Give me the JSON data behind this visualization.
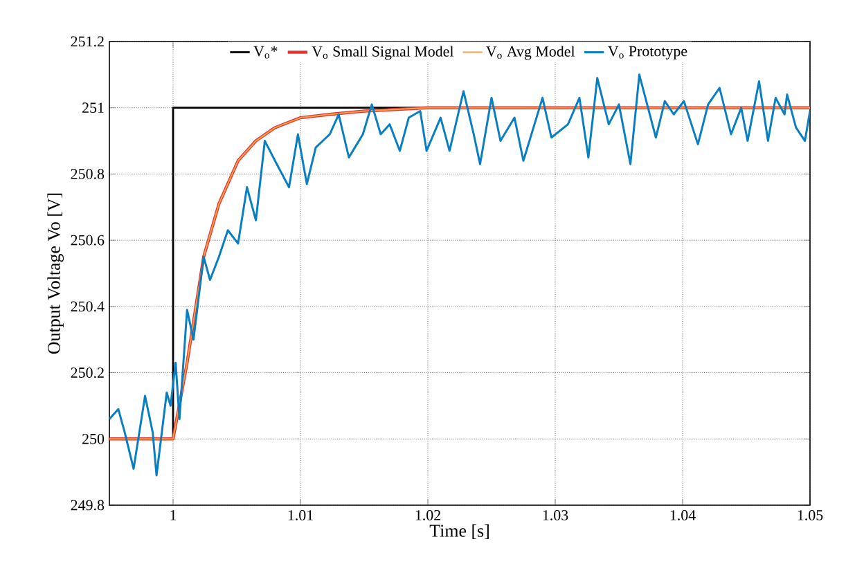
{
  "chart_data": {
    "type": "line",
    "xlabel": "Time [s]",
    "ylabel": "Output Voltage Vo [V]",
    "xlim": [
      0.995,
      1.05
    ],
    "ylim": [
      249.8,
      251.2
    ],
    "xticks": [
      1,
      1.01,
      1.02,
      1.03,
      1.04,
      1.05
    ],
    "yticks": [
      249.8,
      250,
      250.2,
      250.4,
      250.6,
      250.8,
      251,
      251.2
    ],
    "grid": true,
    "legend": "top",
    "series": [
      {
        "name": "V$_{o}$*",
        "color": "#000000",
        "x": [
          0.995,
          1.0,
          1.0,
          1.05
        ],
        "values": [
          250,
          250,
          251,
          251
        ]
      },
      {
        "name": "V$_{o}$ Small Signal Model",
        "color": "#e0312f",
        "x": [
          0.995,
          1.0,
          1.0011,
          1.0024,
          1.0036,
          1.0051,
          1.0065,
          1.008,
          1.01,
          1.0123,
          1.015,
          1.02,
          1.05
        ],
        "values": [
          250,
          250,
          250.23,
          250.55,
          250.71,
          250.84,
          250.9,
          250.94,
          250.97,
          250.98,
          250.99,
          251,
          251
        ]
      },
      {
        "name": "V$_{o}$ Avg Model",
        "color": "#f5a04a",
        "x": [
          0.995,
          1.0,
          1.0011,
          1.0024,
          1.0036,
          1.0051,
          1.0065,
          1.008,
          1.01,
          1.0123,
          1.015,
          1.02,
          1.05
        ],
        "values": [
          250,
          250,
          250.23,
          250.55,
          250.71,
          250.84,
          250.9,
          250.94,
          250.97,
          250.98,
          250.99,
          251,
          251
        ]
      },
      {
        "name": "V$_{o}$ Prototype",
        "color": "#0a7ec2",
        "x": [
          0.995,
          0.9957,
          0.9962,
          0.9969,
          0.9978,
          0.9984,
          0.9987,
          0.9995,
          0.9998,
          1.0002,
          1.0005,
          1.0011,
          1.0016,
          1.0024,
          1.0029,
          1.0036,
          1.0043,
          1.0051,
          1.0058,
          1.0065,
          1.0072,
          1.008,
          1.0091,
          1.0098,
          1.0105,
          1.0112,
          1.0123,
          1.013,
          1.0138,
          1.0149,
          1.0156,
          1.0163,
          1.017,
          1.0178,
          1.0185,
          1.0194,
          1.0199,
          1.021,
          1.0217,
          1.0228,
          1.0236,
          1.0241,
          1.025,
          1.0257,
          1.0268,
          1.0275,
          1.029,
          1.0297,
          1.031,
          1.0319,
          1.0326,
          1.0333,
          1.0342,
          1.035,
          1.0359,
          1.0366,
          1.0379,
          1.0386,
          1.0393,
          1.0401,
          1.0412,
          1.042,
          1.0429,
          1.0438,
          1.0446,
          1.0451,
          1.046,
          1.0467,
          1.0473,
          1.048,
          1.0482,
          1.0489,
          1.0496,
          1.05
        ],
        "values": [
          250.06,
          250.09,
          250.02,
          249.91,
          250.13,
          250.02,
          249.89,
          250.14,
          250.1,
          250.23,
          250.06,
          250.39,
          250.3,
          250.55,
          250.48,
          250.55,
          250.63,
          250.59,
          250.76,
          250.66,
          250.9,
          250.84,
          250.76,
          250.92,
          250.77,
          250.88,
          250.92,
          250.98,
          250.85,
          250.92,
          251.01,
          250.92,
          250.95,
          250.87,
          250.97,
          250.99,
          250.87,
          250.97,
          250.87,
          251.05,
          250.92,
          250.83,
          251.03,
          250.9,
          250.97,
          250.84,
          251.03,
          250.91,
          250.95,
          251.03,
          250.85,
          251.09,
          250.95,
          251.01,
          250.83,
          251.1,
          250.91,
          251.02,
          250.98,
          251.02,
          250.89,
          251.01,
          251.06,
          250.92,
          251.0,
          250.9,
          251.08,
          250.9,
          251.03,
          250.98,
          251.04,
          250.94,
          250.9,
          250.99
        ]
      }
    ]
  }
}
